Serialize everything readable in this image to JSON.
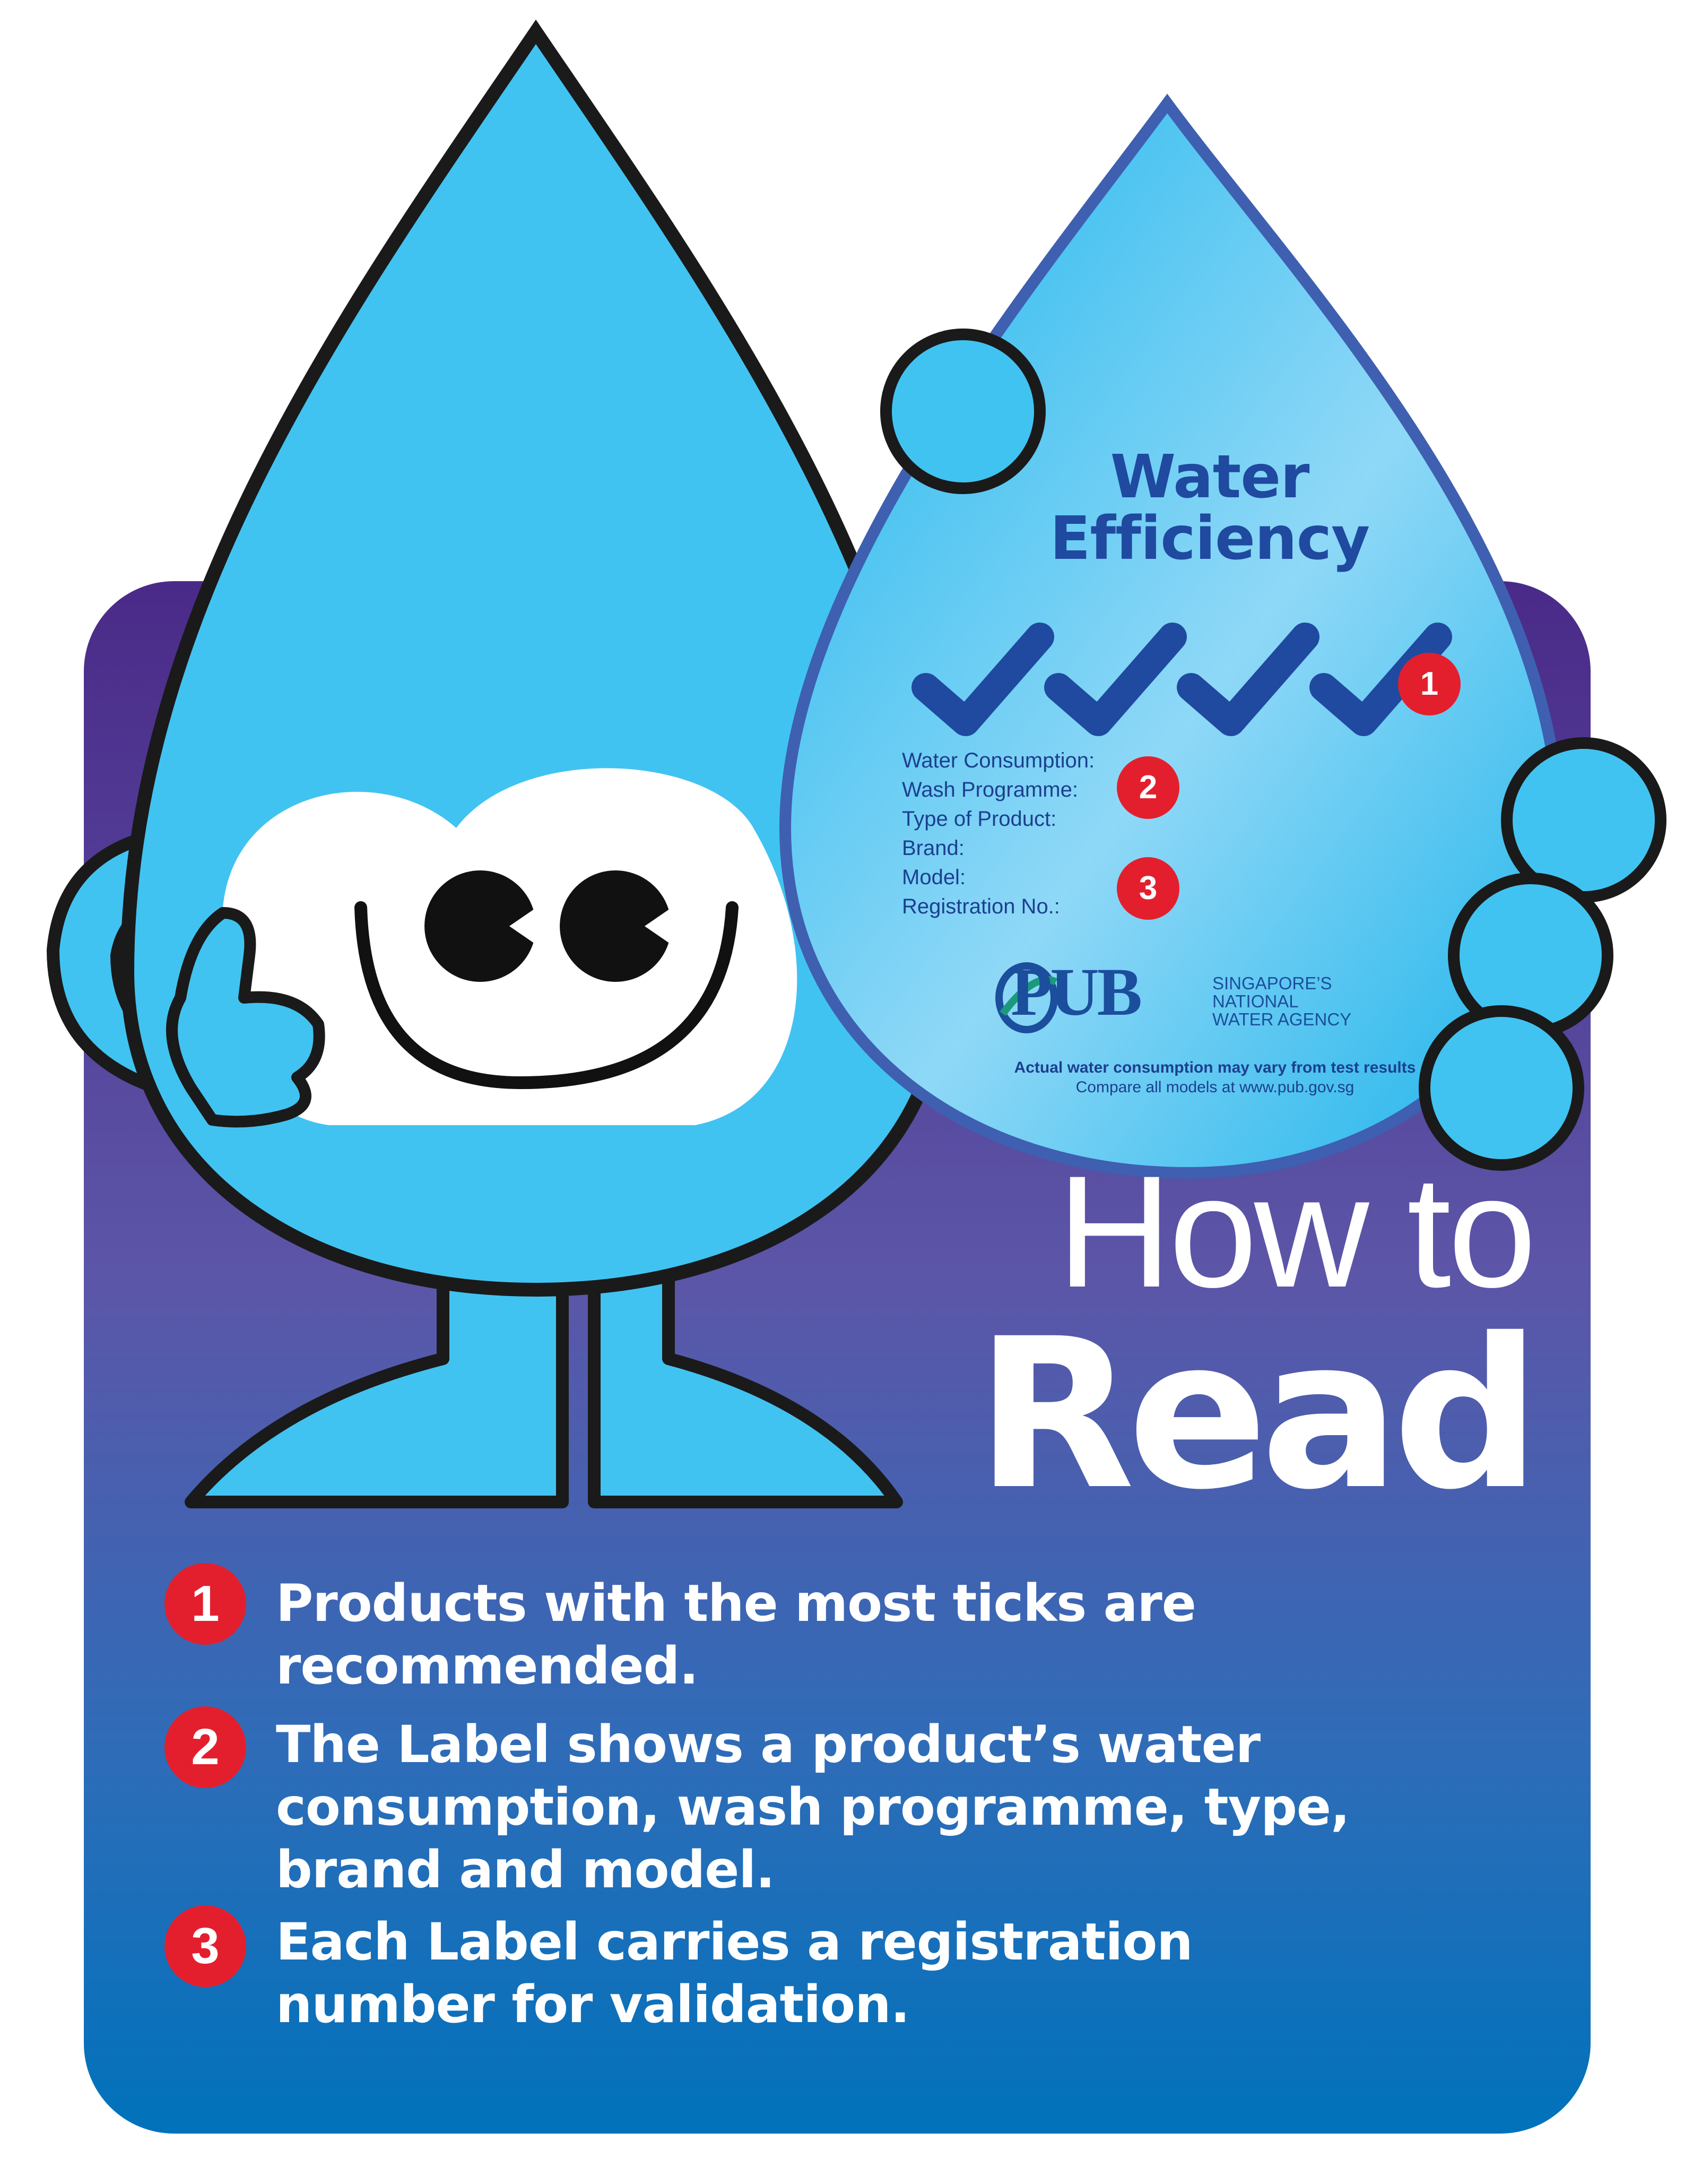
{
  "label": {
    "title_line1": "Water",
    "title_line2": "Efficiency",
    "fields": [
      "Water Consumption:",
      "Wash Programme:",
      "Type of Product:",
      "Brand:",
      "Model:",
      "Registration No.:"
    ],
    "badges": [
      "1",
      "2",
      "3"
    ],
    "pub_logo": "PUB",
    "pub_tagline": [
      "SINGAPORE’S",
      "NATIONAL",
      "WATER AGENCY"
    ],
    "disclaimer": "Actual water consumption may vary from test results",
    "compare_note": "Compare all models at www.pub.gov.sg"
  },
  "headline": {
    "line1": "How to",
    "line2": "Read"
  },
  "items": [
    {
      "num": "1",
      "text": "Products with the most ticks are recommended."
    },
    {
      "num": "2",
      "text": "The Label shows a product’s water consumption, wash programme, type, brand and model."
    },
    {
      "num": "3",
      "text": "Each Label carries a registration number for validation."
    }
  ],
  "colors": {
    "drop_blue": "#41c3f1",
    "outline": "#1a1a1a",
    "panel_top": "#4a2a88",
    "panel_bottom": "#0072bb",
    "badge_red": "#e41f2d",
    "tick_blue": "#1f4aa0"
  }
}
